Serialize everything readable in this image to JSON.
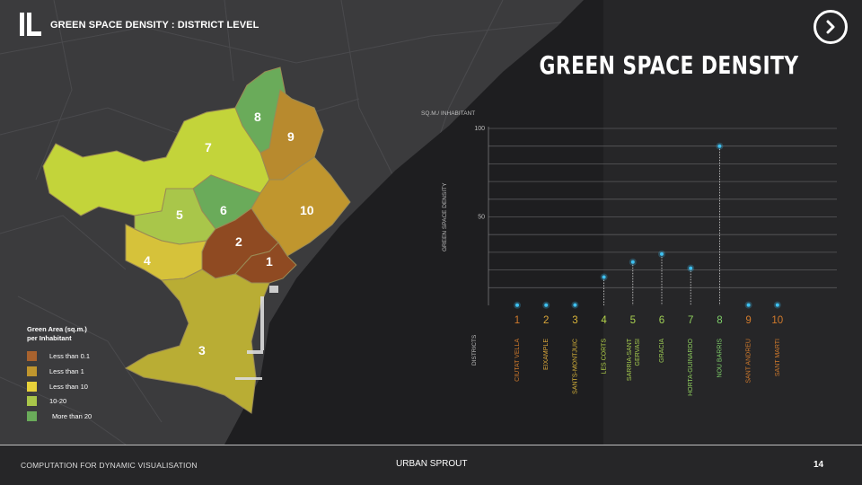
{
  "slide": {
    "top_title": "GREEN SPACE DENSITY : DISTRICT LEVEL",
    "main_title": "GREEN SPACE DENSITY",
    "next_icon": "chevron-right-icon",
    "logo_icon": "section-logo-icon"
  },
  "map": {
    "legend_title_1": "Green Area (sq.m.)",
    "legend_title_2": "per Inhabitant",
    "legend": [
      {
        "label": "Less than 0.1",
        "color": "#a8622e"
      },
      {
        "label": "Less than 1",
        "color": "#c0962e"
      },
      {
        "label": "Less than 10",
        "color": "#e8d23a"
      },
      {
        "label": "10-20",
        "color": "#a9c64a"
      },
      {
        "label": "More than 20",
        "color": "#6aab5a"
      }
    ],
    "district_labels": [
      "1",
      "2",
      "3",
      "4",
      "5",
      "6",
      "7",
      "8",
      "9",
      "10"
    ]
  },
  "chart_data": {
    "type": "scatter",
    "ylabel": "GREEN SPACE DENSITY",
    "yunit": "SQ.M./ INHABITANT",
    "xlabel": "DISTRICTS",
    "ylim": [
      0,
      100
    ],
    "yticks": [
      50,
      100
    ],
    "grid": true,
    "categories": [
      "1",
      "2",
      "3",
      "4",
      "5",
      "6",
      "7",
      "8",
      "9",
      "10"
    ],
    "district_names": [
      "CIUTAT VELLA",
      "EIXAMPLE",
      "SANTS-MONTJUIC",
      "LES CORTS",
      "SARRIA-SANT GERVASI",
      "GRACIA",
      "HORTA-GUINARDO",
      "NOU BARRIS",
      "SANT ANDREU",
      "SANT MARTI"
    ],
    "values": [
      0.1,
      0.1,
      0.2,
      16,
      24.5,
      29,
      21,
      90,
      0.2,
      0.2
    ],
    "category_colors": [
      "#d07a2c",
      "#d9a63a",
      "#d9b53a",
      "#b5d44a",
      "#a8cf4f",
      "#9fcf55",
      "#8fcf5e",
      "#7fcf6a",
      "#d07a2c",
      "#d07a2c"
    ],
    "point_color": "#3ec0f0"
  },
  "footer": {
    "left": "COMPUTATION FOR DYNAMIC VISUALISATION",
    "center": "URBAN SPROUT",
    "page": "14"
  }
}
